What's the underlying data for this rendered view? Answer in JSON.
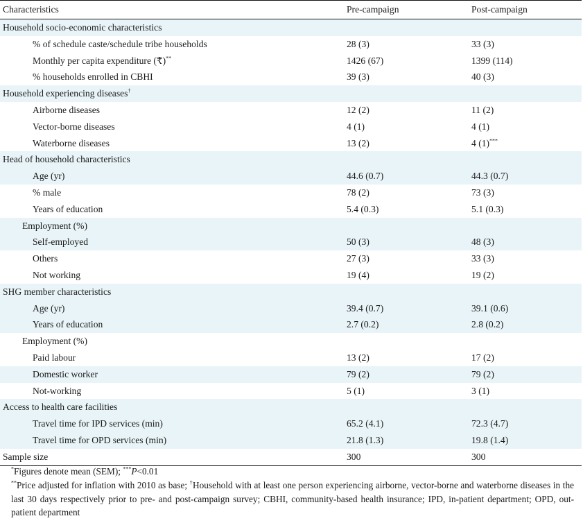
{
  "headers": {
    "characteristics": "Characteristics",
    "pre": "Pre-campaign",
    "post": "Post-campaign"
  },
  "rows": [
    {
      "kind": "section",
      "label": "Household socio-economic characteristics",
      "pre": "",
      "post": "",
      "band": true
    },
    {
      "kind": "item",
      "label": "% of schedule caste/schedule tribe households",
      "pre": "28 (3)",
      "post": "33 (3)",
      "band": false
    },
    {
      "kind": "item",
      "label": "Monthly per capita expenditure (₹)",
      "label_sup": "**",
      "pre": "1426 (67)",
      "post": "1399 (114)",
      "band": false
    },
    {
      "kind": "item",
      "label": "% households enrolled in CBHI",
      "pre": "39 (3)",
      "post": "40 (3)",
      "band": false
    },
    {
      "kind": "section",
      "label": "Household experiencing diseases",
      "label_sup": "†",
      "pre": "",
      "post": "",
      "band": true
    },
    {
      "kind": "item",
      "label": "Airborne diseases",
      "pre": "12 (2)",
      "post": "11 (2)",
      "band": false
    },
    {
      "kind": "item",
      "label": "Vector-borne diseases",
      "pre": "4 (1)",
      "post": "4 (1)",
      "band": false
    },
    {
      "kind": "item",
      "label": "Waterborne diseases",
      "pre": "13 (2)",
      "post": "4 (1)",
      "post_sup": "***",
      "band": false
    },
    {
      "kind": "section",
      "label": "Head of household characteristics",
      "pre": "",
      "post": "",
      "band": true
    },
    {
      "kind": "item",
      "label": "Age (yr)",
      "pre": "44.6 (0.7)",
      "post": "44.3 (0.7)",
      "band": true
    },
    {
      "kind": "item",
      "label": "% male",
      "pre": "78 (2)",
      "post": "73 (3)",
      "band": false
    },
    {
      "kind": "item",
      "label": "Years of education",
      "pre": "5.4 (0.3)",
      "post": "5.1 (0.3)",
      "band": false
    },
    {
      "kind": "sub",
      "label": "Employment (%)",
      "pre": "",
      "post": "",
      "band": true
    },
    {
      "kind": "item",
      "label": "Self-employed",
      "pre": "50 (3)",
      "post": "48 (3)",
      "band": true
    },
    {
      "kind": "item",
      "label": "Others",
      "pre": "27 (3)",
      "post": "33 (3)",
      "band": false
    },
    {
      "kind": "item",
      "label": "Not working",
      "pre": "19 (4)",
      "post": "19 (2)",
      "band": false
    },
    {
      "kind": "section",
      "label": "SHG member characteristics",
      "pre": "",
      "post": "",
      "band": true
    },
    {
      "kind": "item",
      "label": "Age (yr)",
      "pre": "39.4 (0.7)",
      "post": "39.1 (0.6)",
      "band": true
    },
    {
      "kind": "item",
      "label": "Years of education",
      "pre": "2.7 (0.2)",
      "post": "2.8 (0.2)",
      "band": true
    },
    {
      "kind": "sub",
      "label": "Employment (%)",
      "pre": "",
      "post": "",
      "band": false
    },
    {
      "kind": "item",
      "label": "Paid labour",
      "pre": "13 (2)",
      "post": "17 (2)",
      "band": false
    },
    {
      "kind": "item",
      "label": "Domestic worker",
      "pre": "79 (2)",
      "post": "79 (2)",
      "band": true
    },
    {
      "kind": "item",
      "label": "Not-working",
      "pre": "5 (1)",
      "post": "3 (1)",
      "band": false
    },
    {
      "kind": "section",
      "label": "Access to health care facilities",
      "pre": "",
      "post": "",
      "band": true
    },
    {
      "kind": "item",
      "label": "Travel time for IPD services (min)",
      "pre": "65.2 (4.1)",
      "post": "72.3 (4.7)",
      "band": true
    },
    {
      "kind": "item",
      "label": "Travel time for OPD services (min)",
      "pre": "21.8 (1.3)",
      "post": "19.8 (1.4)",
      "band": true
    },
    {
      "kind": "section",
      "label": "Sample size",
      "pre": "300",
      "post": "300",
      "band": false
    }
  ],
  "notes": {
    "n1_sup1": "*",
    "n1_text1": "Figures denote mean (SEM); ",
    "n1_sup2": "***",
    "n1_p": "P",
    "n1_text2": "<0.01",
    "n2_sup1": "**",
    "n2_text1": "Price adjusted for inflation with 2010 as base; ",
    "n2_sup2": "†",
    "n2_text2": "Household with at least one person experiencing airborne, vector-borne and waterborne diseases in the last 30 days respectively prior to pre- and post-campaign survey; CBHI, community-based health insurance; IPD, in-patient department; OPD, out-patient department"
  }
}
